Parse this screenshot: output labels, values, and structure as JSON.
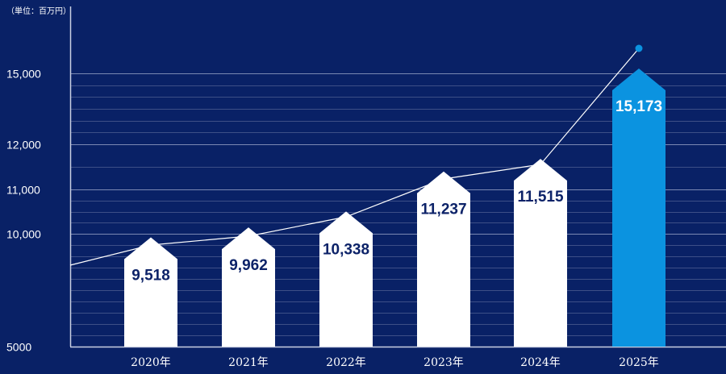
{
  "chart_data": {
    "type": "bar",
    "unit": "（単位：百万円）",
    "categories": [
      "2020年",
      "2021年",
      "2022年",
      "2023年",
      "2024年",
      "2025年"
    ],
    "values": [
      9518,
      9962,
      10338,
      11237,
      11515,
      15173
    ],
    "value_labels": [
      "9,518",
      "9,962",
      "10,338",
      "11,237",
      "11,515",
      "15,173"
    ],
    "line_values": [
      9518,
      9962,
      10338,
      11237,
      11515,
      15173
    ],
    "highlight_index": 5,
    "yticks": [
      5000,
      10000,
      11000,
      12000,
      15000
    ],
    "ytick_labels": [
      "5000",
      "10,000",
      "11,000",
      "12,000",
      "15,000"
    ],
    "ylim": [
      5000,
      16000
    ],
    "grid": true,
    "legend": "none",
    "colors": {
      "background": "#092166",
      "bar": "#ffffff",
      "bar_highlight": "#0b93e0",
      "label": "#0c2268",
      "label_highlight": "#ffffff",
      "line": "#ffffff",
      "grid": "#5f6f9f"
    }
  }
}
